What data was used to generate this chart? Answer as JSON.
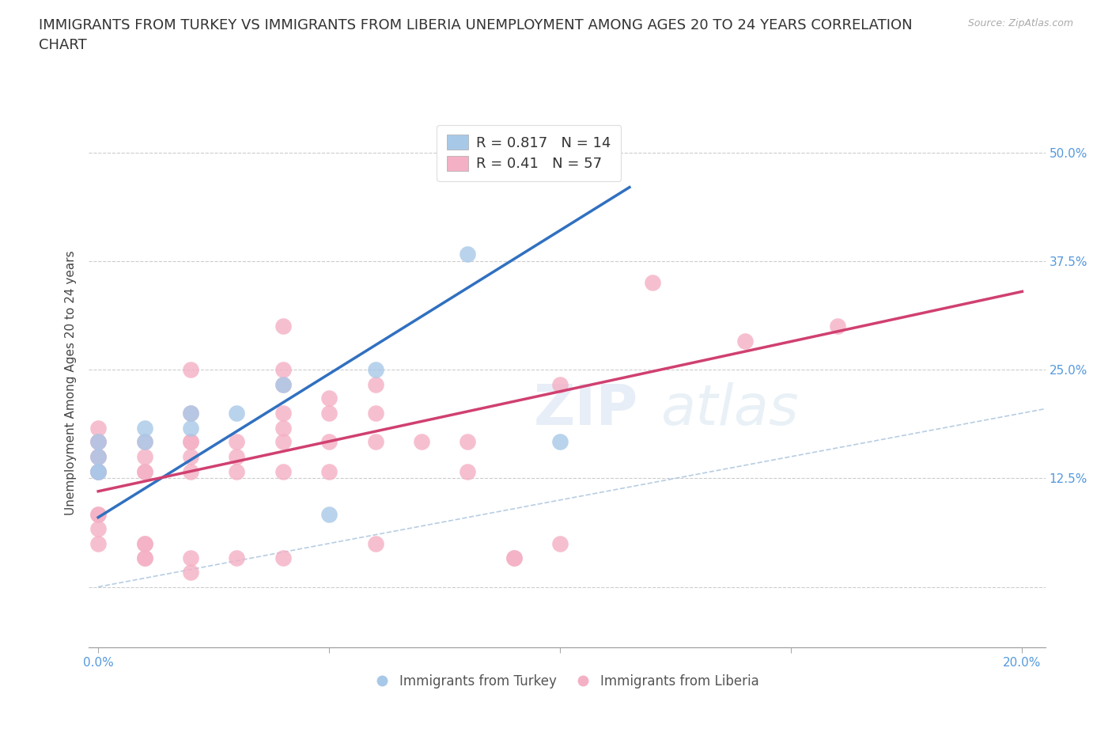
{
  "title": "IMMIGRANTS FROM TURKEY VS IMMIGRANTS FROM LIBERIA UNEMPLOYMENT AMONG AGES 20 TO 24 YEARS CORRELATION\nCHART",
  "source": "Source: ZipAtlas.com",
  "ylabel": "Unemployment Among Ages 20 to 24 years",
  "xlim": [
    -0.002,
    0.205
  ],
  "ylim": [
    -0.07,
    0.54
  ],
  "yticks": [
    0.0,
    0.125,
    0.25,
    0.375,
    0.5
  ],
  "ytick_labels": [
    "",
    "12.5%",
    "25.0%",
    "37.5%",
    "50.0%"
  ],
  "xtick_positions": [
    0.0,
    0.05,
    0.1,
    0.15,
    0.2
  ],
  "xtick_labels": [
    "0.0%",
    "",
    "",
    "",
    "20.0%"
  ],
  "turkey_color": "#a8c8e8",
  "liberia_color": "#f4b0c4",
  "turkey_line_color": "#3070c0",
  "liberia_line_color": "#d04070",
  "diagonal_color": "#b0c8e0",
  "turkey_R": 0.817,
  "turkey_N": 14,
  "liberia_R": 0.41,
  "liberia_N": 57,
  "turkey_scatter": [
    [
      0.0,
      0.133
    ],
    [
      0.0,
      0.133
    ],
    [
      0.0,
      0.15
    ],
    [
      0.0,
      0.167
    ],
    [
      0.01,
      0.167
    ],
    [
      0.01,
      0.183
    ],
    [
      0.02,
      0.183
    ],
    [
      0.02,
      0.2
    ],
    [
      0.03,
      0.2
    ],
    [
      0.04,
      0.233
    ],
    [
      0.05,
      0.083
    ],
    [
      0.06,
      0.25
    ],
    [
      0.08,
      0.383
    ],
    [
      0.1,
      0.167
    ]
  ],
  "liberia_scatter": [
    [
      0.0,
      0.133
    ],
    [
      0.0,
      0.133
    ],
    [
      0.0,
      0.133
    ],
    [
      0.0,
      0.15
    ],
    [
      0.0,
      0.15
    ],
    [
      0.0,
      0.167
    ],
    [
      0.0,
      0.167
    ],
    [
      0.0,
      0.183
    ],
    [
      0.0,
      0.083
    ],
    [
      0.0,
      0.083
    ],
    [
      0.0,
      0.067
    ],
    [
      0.0,
      0.05
    ],
    [
      0.01,
      0.133
    ],
    [
      0.01,
      0.133
    ],
    [
      0.01,
      0.15
    ],
    [
      0.01,
      0.167
    ],
    [
      0.01,
      0.05
    ],
    [
      0.01,
      0.05
    ],
    [
      0.01,
      0.033
    ],
    [
      0.01,
      0.033
    ],
    [
      0.02,
      0.133
    ],
    [
      0.02,
      0.15
    ],
    [
      0.02,
      0.167
    ],
    [
      0.02,
      0.167
    ],
    [
      0.02,
      0.2
    ],
    [
      0.02,
      0.25
    ],
    [
      0.02,
      0.033
    ],
    [
      0.02,
      0.017
    ],
    [
      0.03,
      0.133
    ],
    [
      0.03,
      0.15
    ],
    [
      0.03,
      0.167
    ],
    [
      0.03,
      0.033
    ],
    [
      0.04,
      0.133
    ],
    [
      0.04,
      0.167
    ],
    [
      0.04,
      0.183
    ],
    [
      0.04,
      0.2
    ],
    [
      0.04,
      0.233
    ],
    [
      0.04,
      0.25
    ],
    [
      0.04,
      0.3
    ],
    [
      0.04,
      0.033
    ],
    [
      0.05,
      0.133
    ],
    [
      0.05,
      0.167
    ],
    [
      0.05,
      0.2
    ],
    [
      0.05,
      0.217
    ],
    [
      0.06,
      0.167
    ],
    [
      0.06,
      0.2
    ],
    [
      0.06,
      0.233
    ],
    [
      0.06,
      0.05
    ],
    [
      0.07,
      0.167
    ],
    [
      0.08,
      0.133
    ],
    [
      0.08,
      0.167
    ],
    [
      0.09,
      0.033
    ],
    [
      0.09,
      0.033
    ],
    [
      0.1,
      0.233
    ],
    [
      0.1,
      0.05
    ],
    [
      0.12,
      0.35
    ],
    [
      0.14,
      0.283
    ],
    [
      0.16,
      0.3
    ]
  ],
  "background_color": "#ffffff",
  "grid_color": "#cccccc",
  "watermark": "ZIPatlas",
  "title_fontsize": 13,
  "label_fontsize": 11,
  "tick_fontsize": 11,
  "legend_label_turkey": "Immigrants from Turkey",
  "legend_label_liberia": "Immigrants from Liberia",
  "turkey_reg_line": [
    [
      0.0,
      0.08
    ],
    [
      0.115,
      0.46
    ]
  ],
  "liberia_reg_line": [
    [
      0.0,
      0.11
    ],
    [
      0.2,
      0.34
    ]
  ]
}
